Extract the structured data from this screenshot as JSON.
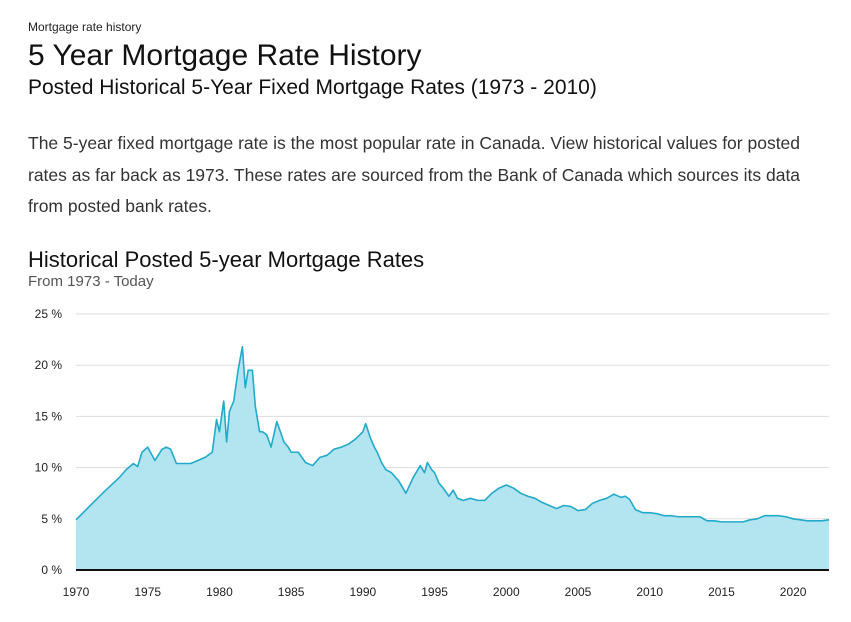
{
  "breadcrumb": "Mortgage rate history",
  "title": "5 Year Mortgage Rate History",
  "subtitle": "Posted Historical 5-Year Fixed Mortgage Rates (1973 - 2010)",
  "intro": "The 5-year fixed mortgage rate is the most popular rate in Canada. View historical values for posted rates as far back as 1973. These rates are sourced from the Bank of Canada which sources its data from posted bank rates.",
  "colors": {
    "area_fill": "#b3e5f0",
    "line": "#22aac8",
    "grid": "#dddddd",
    "axis": "#111111"
  },
  "chart_data": {
    "type": "area",
    "title": "Historical Posted 5-year Mortgage Rates",
    "subtitle": "From 1973 - Today",
    "xlabel": "",
    "ylabel": "",
    "xlim": [
      1970,
      2022.5
    ],
    "ylim": [
      0,
      25
    ],
    "grid": true,
    "legend": false,
    "x_ticks": [
      1970,
      1975,
      1980,
      1985,
      1990,
      1995,
      2000,
      2005,
      2010,
      2015,
      2020
    ],
    "x_tick_labels": [
      "1970",
      "1975",
      "1980",
      "1985",
      "1990",
      "1995",
      "2000",
      "2005",
      "2010",
      "2015",
      "2020"
    ],
    "y_ticks": [
      0,
      5,
      10,
      15,
      20,
      25
    ],
    "y_tick_labels": [
      "0 %",
      "5 %",
      "10 %",
      "15 %",
      "20 %",
      "25 %"
    ],
    "series": [
      {
        "x": [
          1970,
          1971,
          1972,
          1973,
          1973.5,
          1974,
          1974.3,
          1974.6,
          1975,
          1975.5,
          1976,
          1976.3,
          1976.6,
          1977,
          1977.5,
          1978,
          1979,
          1979.5,
          1979.8,
          1980,
          1980.3,
          1980.5,
          1980.7,
          1981,
          1981.3,
          1981.6,
          1981.8,
          1982,
          1982.3,
          1982.5,
          1982.8,
          1983,
          1983.3,
          1983.6,
          1984,
          1984.5,
          1984.8,
          1985,
          1985.5,
          1986,
          1986.5,
          1987,
          1987.5,
          1988,
          1988.5,
          1989,
          1989.5,
          1990,
          1990.2,
          1990.5,
          1990.8,
          1991,
          1991.3,
          1991.6,
          1992,
          1992.5,
          1993,
          1993.5,
          1994,
          1994.3,
          1994.5,
          1994.8,
          1995,
          1995.3,
          1995.6,
          1996,
          1996.3,
          1996.6,
          1997,
          1997.5,
          1998,
          1998.5,
          1999,
          1999.5,
          2000,
          2000.5,
          2001,
          2001.5,
          2002,
          2002.5,
          2003,
          2003.5,
          2004,
          2004.5,
          2005,
          2005.5,
          2006,
          2006.5,
          2007,
          2007.5,
          2008,
          2008.3,
          2008.6,
          2009,
          2009.5,
          2010,
          2010.5,
          2011,
          2011.5,
          2012,
          2012.5,
          2013,
          2013.5,
          2014,
          2014.5,
          2015,
          2015.5,
          2016,
          2016.5,
          2017,
          2017.5,
          2018,
          2018.5,
          2019,
          2019.5,
          2020,
          2020.5,
          2021,
          2021.5,
          2022,
          2022.5
        ],
        "y": [
          4.9,
          6.3,
          7.7,
          9.0,
          9.8,
          10.4,
          10.1,
          11.5,
          12.0,
          10.7,
          11.8,
          12.0,
          11.8,
          10.4,
          10.4,
          10.4,
          11.0,
          11.5,
          14.7,
          13.5,
          16.5,
          12.5,
          15.5,
          16.5,
          19.5,
          21.8,
          17.8,
          19.5,
          19.5,
          16.0,
          13.5,
          13.5,
          13.2,
          12.0,
          14.5,
          12.5,
          12.0,
          11.5,
          11.5,
          10.5,
          10.2,
          11.0,
          11.2,
          11.8,
          12.0,
          12.3,
          12.8,
          13.5,
          14.3,
          13.0,
          12.0,
          11.5,
          10.5,
          9.8,
          9.5,
          8.7,
          7.5,
          9.0,
          10.2,
          9.5,
          10.5,
          9.8,
          9.5,
          8.5,
          8.0,
          7.2,
          7.8,
          7.0,
          6.8,
          7.0,
          6.8,
          6.8,
          7.5,
          8.0,
          8.3,
          8.0,
          7.5,
          7.2,
          7.0,
          6.6,
          6.3,
          6.0,
          6.3,
          6.2,
          5.8,
          5.9,
          6.5,
          6.8,
          7.0,
          7.4,
          7.1,
          7.2,
          6.9,
          5.9,
          5.6,
          5.6,
          5.5,
          5.3,
          5.3,
          5.2,
          5.2,
          5.2,
          5.2,
          4.8,
          4.8,
          4.7,
          4.7,
          4.7,
          4.7,
          4.9,
          5.0,
          5.3,
          5.3,
          5.3,
          5.2,
          5.0,
          4.9,
          4.8,
          4.8,
          4.8,
          4.9
        ]
      }
    ]
  }
}
